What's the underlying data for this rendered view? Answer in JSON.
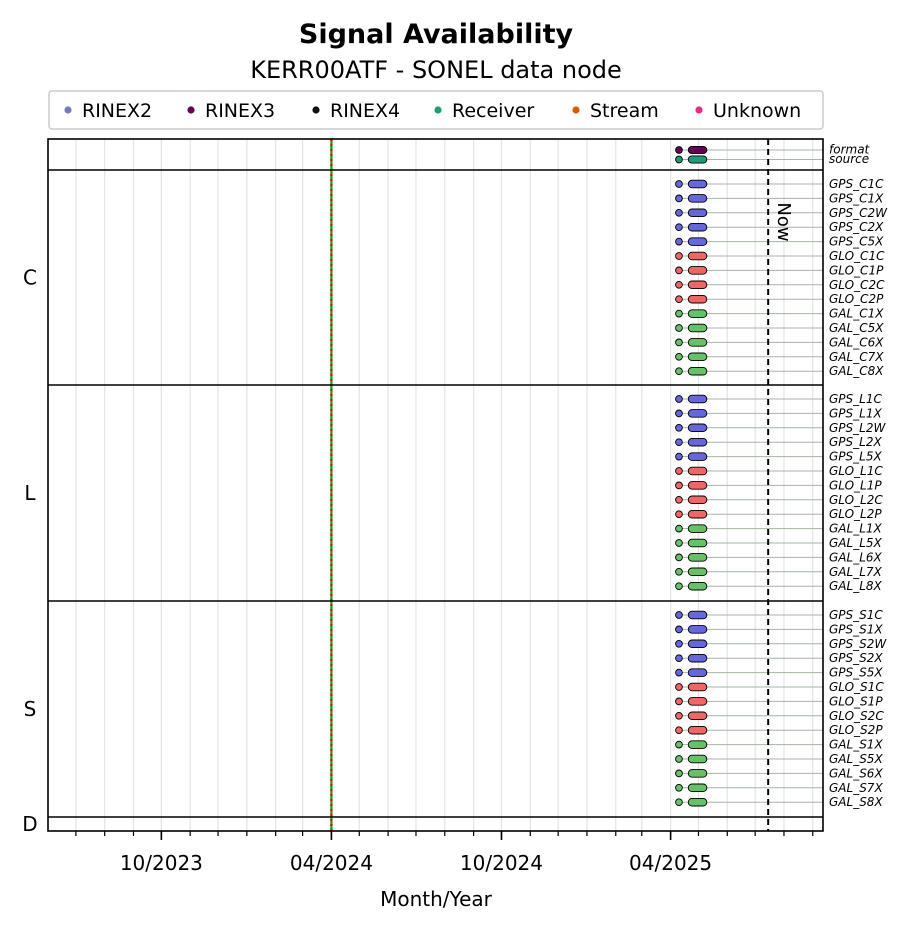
{
  "chart_data": {
    "type": "timeline",
    "title": "Signal Availability",
    "subtitle": "KERR00ATF - SONEL data node",
    "xlabel": "Month/Year",
    "x_range": [
      "2023-06-01",
      "2025-09-12"
    ],
    "x_ticks": [
      "10/2023",
      "04/2024",
      "10/2024",
      "04/2025"
    ],
    "x_tick_dates": [
      "2023-10-01",
      "2024-04-01",
      "2024-10-01",
      "2025-04-01"
    ],
    "now_label": "Now",
    "now_date": "2025-07-15",
    "reference_line_date": "2024-04-01",
    "legend": {
      "placement": "top",
      "items": [
        {
          "label": "RINEX2",
          "color": "#7777bb"
        },
        {
          "label": "RINEX3",
          "color": "#66005a"
        },
        {
          "label": "RINEX4",
          "color": "#111111"
        },
        {
          "label": "Receiver",
          "color": "#1b9e77"
        },
        {
          "label": "Stream",
          "color": "#d95f02"
        },
        {
          "label": "Unknown",
          "color": "#e7298a"
        }
      ]
    },
    "colors": {
      "GPS": "#6666dd",
      "GLO": "#ee6666",
      "GAL": "#66c266",
      "format": "#66005a",
      "source": "#1b9e77"
    },
    "meta_rows": [
      {
        "label": "format",
        "color_key": "format",
        "point": "2025-04-10",
        "bar": [
          "2025-04-20",
          "2025-05-10"
        ]
      },
      {
        "label": "source",
        "color_key": "source",
        "point": "2025-04-10",
        "bar": [
          "2025-04-20",
          "2025-05-10"
        ]
      }
    ],
    "groups": [
      {
        "label": "C",
        "signals": [
          "GPS_C1C",
          "GPS_C1X",
          "GPS_C2W",
          "GPS_C2X",
          "GPS_C5X",
          "GLO_C1C",
          "GLO_C1P",
          "GLO_C2C",
          "GLO_C2P",
          "GAL_C1X",
          "GAL_C5X",
          "GAL_C6X",
          "GAL_C7X",
          "GAL_C8X"
        ]
      },
      {
        "label": "L",
        "signals": [
          "GPS_L1C",
          "GPS_L1X",
          "GPS_L2W",
          "GPS_L2X",
          "GPS_L5X",
          "GLO_L1C",
          "GLO_L1P",
          "GLO_L2C",
          "GLO_L2P",
          "GAL_L1X",
          "GAL_L5X",
          "GAL_L6X",
          "GAL_L7X",
          "GAL_L8X"
        ]
      },
      {
        "label": "S",
        "signals": [
          "GPS_S1C",
          "GPS_S1X",
          "GPS_S2W",
          "GPS_S2X",
          "GPS_S5X",
          "GLO_S1C",
          "GLO_S1P",
          "GLO_S2C",
          "GLO_S2P",
          "GAL_S1X",
          "GAL_S5X",
          "GAL_S6X",
          "GAL_S7X",
          "GAL_S8X"
        ]
      },
      {
        "label": "D",
        "signals": []
      }
    ],
    "signal_point": "2025-04-10",
    "signal_bar": [
      "2025-04-20",
      "2025-05-10"
    ]
  }
}
